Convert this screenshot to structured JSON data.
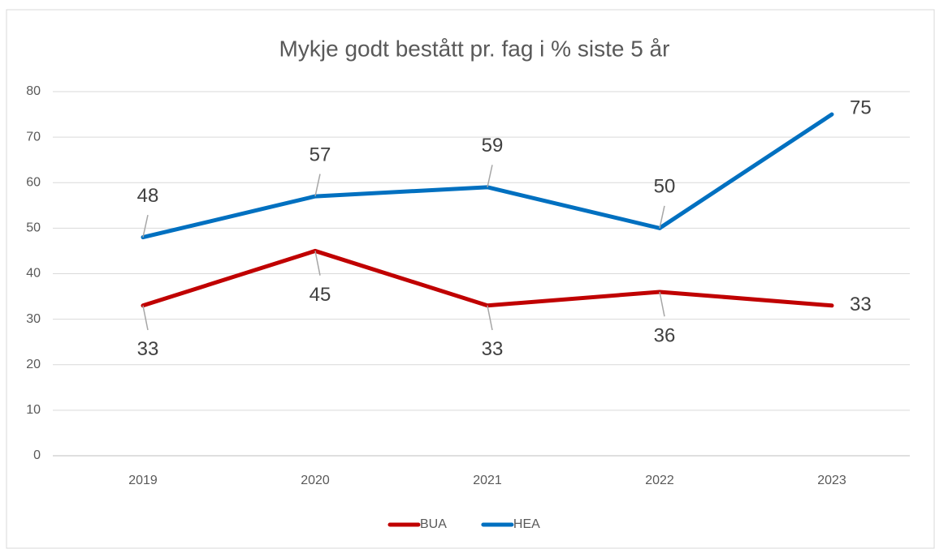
{
  "chart_data": {
    "type": "line",
    "title": "Mykje godt bestått pr. fag i % siste 5 år",
    "categories": [
      "2019",
      "2020",
      "2021",
      "2022",
      "2023"
    ],
    "series": [
      {
        "name": "BUA",
        "color": "#c00000",
        "values": [
          33,
          45,
          33,
          36,
          33
        ]
      },
      {
        "name": "HEA",
        "color": "#0070c0",
        "values": [
          48,
          57,
          59,
          50,
          75
        ]
      }
    ],
    "ylim": [
      0,
      80
    ],
    "yticks": [
      0,
      10,
      20,
      30,
      40,
      50,
      60,
      70,
      80
    ],
    "grid": true,
    "legend": "bottom"
  }
}
